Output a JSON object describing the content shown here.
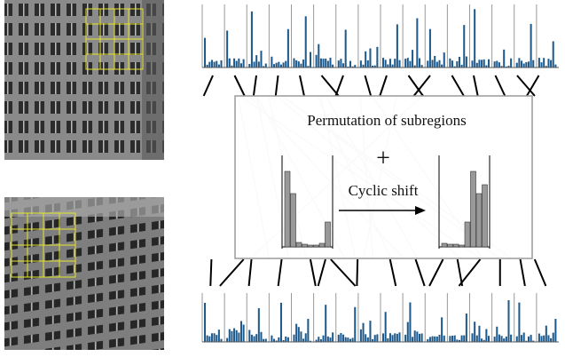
{
  "diagram": {
    "box_title": "Permutation of subregions",
    "operator": "+",
    "arrow_label": "Cyclic shift"
  }
}
